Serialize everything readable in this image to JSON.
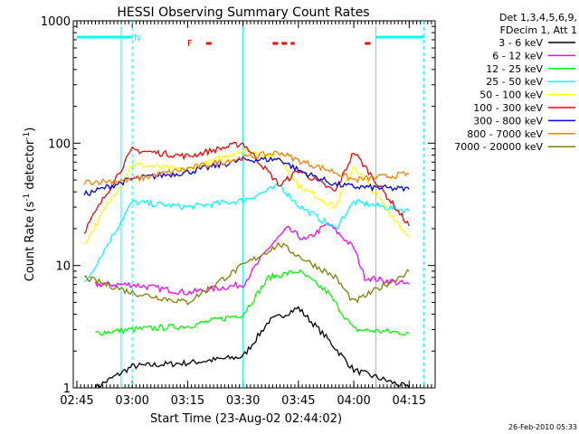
{
  "chart_data": {
    "type": "line",
    "title": "HESSI Observing Summary Count Rates",
    "xlabel": "Start Time (23-Aug-02 02:44:02)",
    "ylabel": "Count Rate (s⁻¹ detector⁻¹)",
    "y_scale": "log",
    "ylim": [
      1,
      1000
    ],
    "xlim_minutes": [
      0,
      98
    ],
    "x_tick_labels": [
      "02:45",
      "03:00",
      "03:15",
      "03:30",
      "03:45",
      "04:00",
      "04:15"
    ],
    "y_tick_labels": [
      "1",
      "10",
      "100",
      "1000"
    ],
    "legend": {
      "title_lines": [
        "Det 1,3,4,5,6,9,",
        "FDecim 1, Att 1"
      ],
      "placement": "right"
    },
    "annotations": {
      "night_bar_label": "N",
      "flare_bar_label": "F",
      "timestamp": "26-Feb-2010 05:33"
    },
    "night_intervals": [
      [
        "02:45",
        "03:00"
      ],
      [
        "04:06",
        "04:19"
      ]
    ],
    "flare_intervals": [
      [
        "03:20",
        "03:22"
      ],
      [
        "03:38",
        "03:44"
      ],
      [
        "04:03",
        "04:05"
      ]
    ],
    "series": [
      {
        "name": "3 - 6 keV",
        "color": "#000000",
        "times": [
          "02:50",
          "03:00",
          "03:15",
          "03:30",
          "03:37",
          "03:45",
          "03:53",
          "04:00",
          "04:15"
        ],
        "values": [
          1.0,
          1.5,
          1.6,
          1.8,
          3.5,
          4.5,
          2.5,
          1.4,
          1.0
        ]
      },
      {
        "name": "6 - 12 keV",
        "color": "#ff00ff",
        "times": [
          "02:50",
          "03:00",
          "03:15",
          "03:30",
          "03:37",
          "03:42",
          "03:47",
          "03:53",
          "04:00",
          "04:03",
          "04:15"
        ],
        "values": [
          7,
          7,
          6,
          7,
          14,
          20,
          16,
          22,
          14,
          8,
          7
        ]
      },
      {
        "name": "12 - 25 keV",
        "color": "#00ff00",
        "times": [
          "02:50",
          "03:00",
          "03:15",
          "03:30",
          "03:37",
          "03:45",
          "03:53",
          "04:00",
          "04:15"
        ],
        "values": [
          2.8,
          3.0,
          3.2,
          4.0,
          8,
          9,
          6,
          3,
          2.8
        ]
      },
      {
        "name": "25 - 50 keV",
        "color": "#00ffff",
        "times": [
          "02:47",
          "03:00",
          "03:15",
          "03:30",
          "03:40",
          "03:45",
          "03:55",
          "04:00",
          "04:15"
        ],
        "values": [
          7,
          33,
          30,
          34,
          45,
          31,
          20,
          33,
          28
        ]
      },
      {
        "name": "50 - 100 keV",
        "color": "#ffff00",
        "times": [
          "02:47",
          "03:00",
          "03:15",
          "03:30",
          "03:40",
          "03:45",
          "03:55",
          "04:00",
          "04:15"
        ],
        "values": [
          15,
          67,
          60,
          88,
          75,
          45,
          30,
          65,
          17
        ]
      },
      {
        "name": "100 - 300 keV",
        "color": "#ff0000",
        "times": [
          "02:47",
          "03:00",
          "03:15",
          "03:30",
          "03:40",
          "03:45",
          "03:55",
          "04:00",
          "04:15"
        ],
        "values": [
          19,
          88,
          78,
          100,
          45,
          60,
          40,
          85,
          21
        ]
      },
      {
        "name": "300 - 800 keV",
        "color": "#0000ff",
        "times": [
          "02:47",
          "03:00",
          "03:15",
          "03:30",
          "03:40",
          "03:45",
          "03:55",
          "04:00",
          "04:15"
        ],
        "values": [
          38,
          51,
          58,
          73,
          74,
          60,
          46,
          44,
          42
        ]
      },
      {
        "name": "800 - 7000 keV",
        "color": "#ff8000",
        "times": [
          "02:47",
          "03:00",
          "03:15",
          "03:30",
          "03:40",
          "03:45",
          "03:55",
          "04:00",
          "04:15"
        ],
        "values": [
          48,
          50,
          62,
          76,
          84,
          72,
          58,
          50,
          56
        ]
      },
      {
        "name": "7000 - 20000 keV",
        "color": "#808000",
        "times": [
          "02:47",
          "03:00",
          "03:15",
          "03:30",
          "03:40",
          "03:45",
          "03:55",
          "04:00",
          "04:15"
        ],
        "values": [
          8,
          6,
          5,
          10,
          15,
          12,
          8,
          5,
          9
        ]
      }
    ]
  }
}
